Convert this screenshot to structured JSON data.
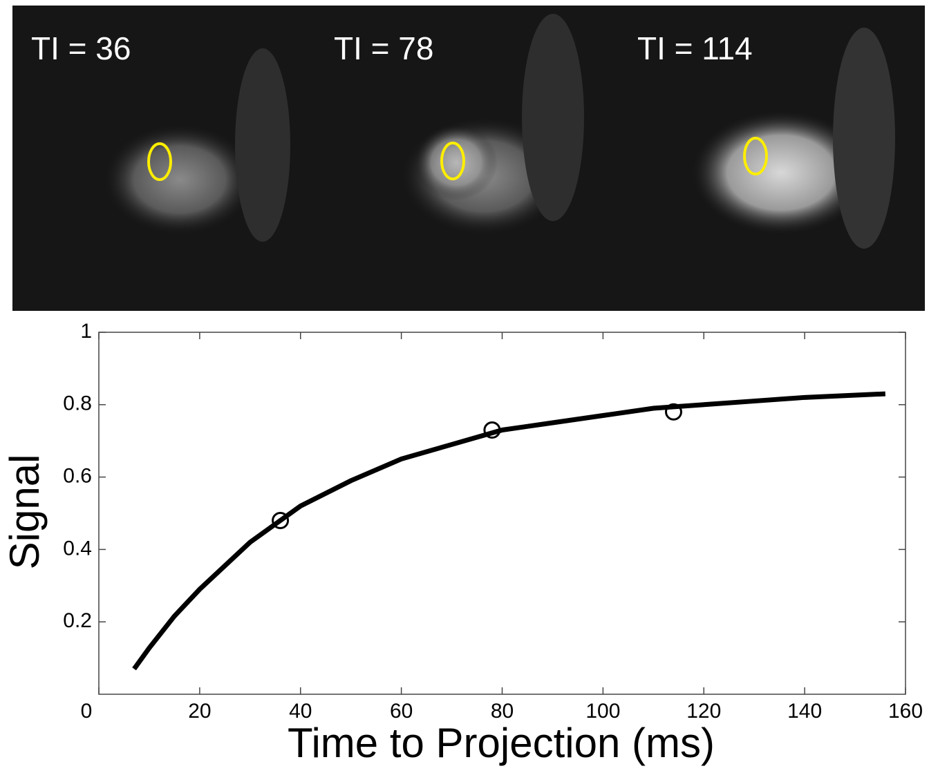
{
  "panels": [
    {
      "label": "TI = 36"
    },
    {
      "label": "TI = 78"
    },
    {
      "label": "TI = 114"
    }
  ],
  "chart_data": {
    "type": "line",
    "xlabel": "Time to Projection (ms)",
    "ylabel": "Signal",
    "xlim": [
      0,
      160
    ],
    "xticks": [
      0,
      20,
      40,
      60,
      80,
      100,
      120,
      140,
      160
    ],
    "ylim": [
      0,
      1
    ],
    "yticks": [
      0.2,
      0.4,
      0.6,
      0.8,
      1
    ],
    "series": [
      {
        "style": "marker",
        "color": "#000000",
        "x": [
          36,
          78,
          114
        ],
        "values": [
          0.48,
          0.73,
          0.78
        ]
      },
      {
        "style": "line",
        "color": "#000000",
        "x": [
          7,
          10,
          15,
          20,
          30,
          40,
          50,
          60,
          70,
          80,
          90,
          100,
          110,
          120,
          130,
          140,
          156
        ],
        "values": [
          0.07,
          0.128,
          0.216,
          0.29,
          0.42,
          0.52,
          0.59,
          0.65,
          0.69,
          0.73,
          0.75,
          0.77,
          0.79,
          0.8,
          0.81,
          0.82,
          0.83
        ]
      }
    ]
  }
}
